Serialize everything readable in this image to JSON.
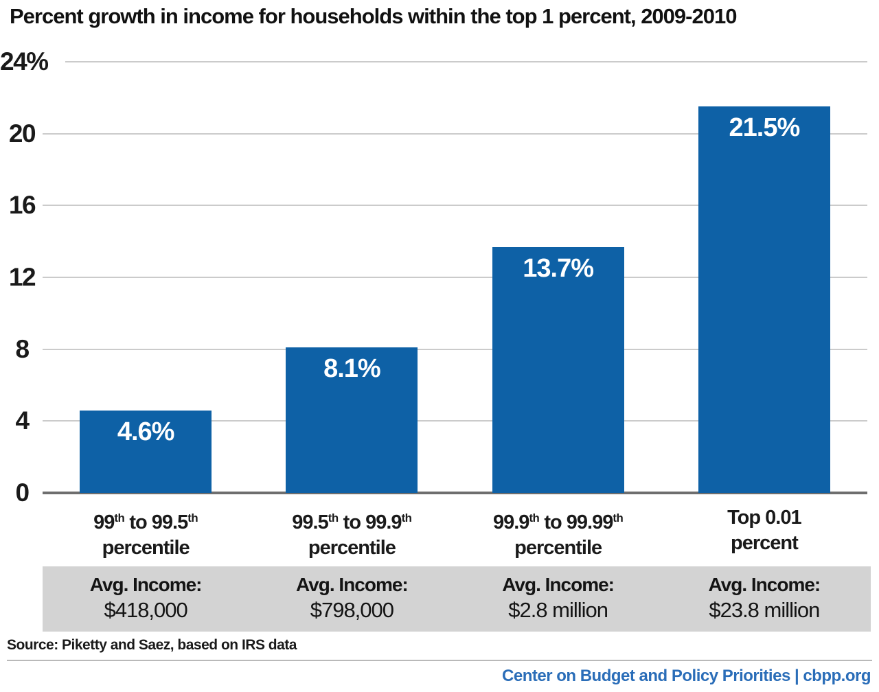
{
  "source_note": "Source: Piketty and Saez, based on IRS data",
  "footer_brand": "Center on Budget and Policy Priorities | cbpp.org",
  "colors": {
    "bar": "#0E61A6",
    "value_label": "#FFFFFF",
    "footer_blue": "#2A6DB8",
    "band_bg": "#D3D3D3",
    "gridline": "#CBCBCB",
    "baseline": "#6E6E6E"
  },
  "chart_data": {
    "type": "bar",
    "title": "Percent growth in income for households within the top 1 percent, 2009-2010",
    "categories": [
      "99th to 99.5th percentile",
      "99.5th to 99.9th percentile",
      "99.9th to 99.99th percentile",
      "Top 0.01 percent"
    ],
    "category_lines": [
      [
        "99th to 99.5th",
        "percentile"
      ],
      [
        "99.5th to 99.9th",
        "percentile"
      ],
      [
        "99.9th to 99.99th",
        "percentile"
      ],
      [
        "Top 0.01",
        "percent"
      ]
    ],
    "values": [
      4.6,
      8.1,
      13.7,
      21.5
    ],
    "bar_labels": [
      "4.6%",
      "8.1%",
      "13.7%",
      "21.5%"
    ],
    "y_ticks": [
      {
        "value": 0,
        "label": "0"
      },
      {
        "value": 4,
        "label": "4"
      },
      {
        "value": 8,
        "label": "8"
      },
      {
        "value": 12,
        "label": "12"
      },
      {
        "value": 16,
        "label": "16"
      },
      {
        "value": 20,
        "label": "20"
      },
      {
        "value": 24,
        "label": "24%"
      }
    ],
    "ylim": [
      0,
      24
    ],
    "xlabel": "",
    "ylabel": "",
    "grid": true,
    "legend": false,
    "income_row": {
      "prefix": "Avg. Income:",
      "values": [
        "$418,000",
        "$798,000",
        "$2.8 million",
        "$23.8 million"
      ]
    }
  }
}
